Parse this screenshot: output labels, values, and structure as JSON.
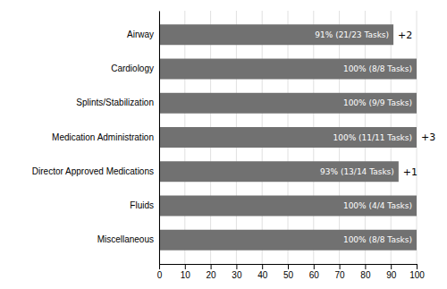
{
  "chart_data": {
    "type": "bar",
    "orientation": "horizontal",
    "categories": [
      "Airway",
      "Cardiology",
      "Splints/Stabilization",
      "Medication Administration",
      "Director Approved Medications",
      "Fluids",
      "Miscellaneous"
    ],
    "values": [
      91,
      100,
      100,
      100,
      93,
      100,
      100
    ],
    "value_labels": [
      "91% (21/23 Tasks)",
      "100% (8/8 Tasks)",
      "100% (9/9 Tasks)",
      "100% (11/11 Tasks)",
      "93% (13/14 Tasks)",
      "100% (4/4 Tasks)",
      "100% (8/8 Tasks)"
    ],
    "data_labels": true,
    "annotations": [
      {
        "category": "Airway",
        "text": "+2"
      },
      {
        "category": "Medication Administration",
        "text": "+3"
      },
      {
        "category": "Director Approved Medications",
        "text": "+1"
      }
    ],
    "color": "#717171",
    "xlim": [
      0,
      100
    ],
    "xticks": [
      0,
      10,
      20,
      30,
      40,
      50,
      60,
      70,
      80,
      90,
      100
    ],
    "grid": true
  }
}
